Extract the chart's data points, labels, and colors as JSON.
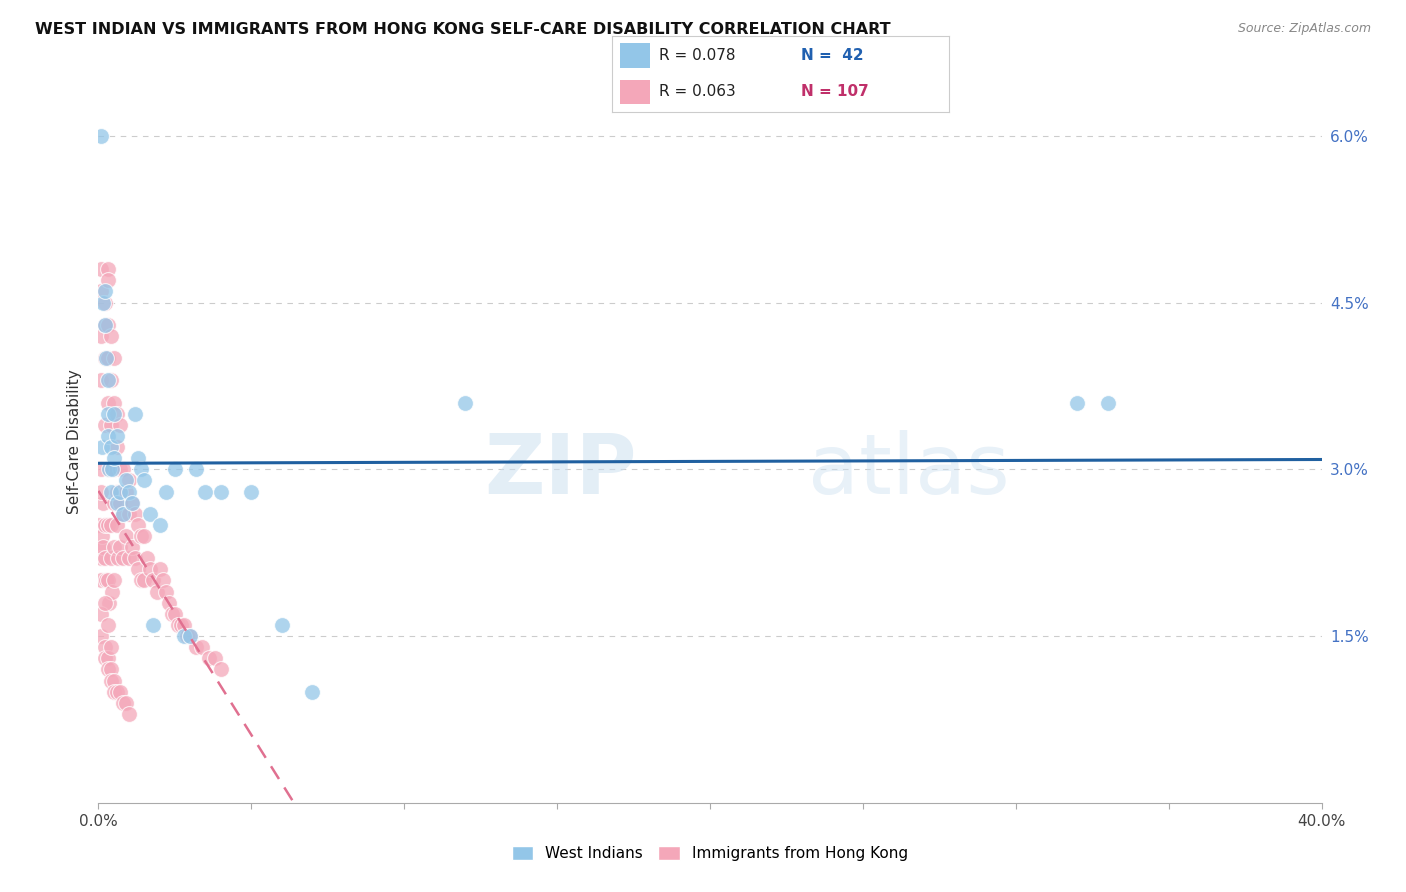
{
  "title": "WEST INDIAN VS IMMIGRANTS FROM HONG KONG SELF-CARE DISABILITY CORRELATION CHART",
  "source": "Source: ZipAtlas.com",
  "ylabel": "Self-Care Disability",
  "color_blue": "#93c6e8",
  "color_pink": "#f4a7b9",
  "color_blue_line": "#2060a0",
  "color_pink_line": "#e07090",
  "watermark_zip": "ZIP",
  "watermark_atlas": "atlas",
  "legend_r1": "R = 0.078",
  "legend_n1": "N =  42",
  "legend_r2": "R = 0.063",
  "legend_n2": "N = 107",
  "wi_x": [
    0.0008,
    0.0012,
    0.0015,
    0.002,
    0.002,
    0.0025,
    0.003,
    0.003,
    0.003,
    0.0035,
    0.004,
    0.004,
    0.0045,
    0.005,
    0.005,
    0.006,
    0.006,
    0.007,
    0.008,
    0.009,
    0.01,
    0.011,
    0.012,
    0.013,
    0.014,
    0.015,
    0.017,
    0.018,
    0.02,
    0.022,
    0.025,
    0.028,
    0.03,
    0.032,
    0.035,
    0.04,
    0.05,
    0.06,
    0.07,
    0.12,
    0.32,
    0.33
  ],
  "wi_y": [
    0.06,
    0.032,
    0.045,
    0.046,
    0.043,
    0.04,
    0.038,
    0.035,
    0.033,
    0.03,
    0.032,
    0.028,
    0.03,
    0.035,
    0.031,
    0.033,
    0.027,
    0.028,
    0.026,
    0.029,
    0.028,
    0.027,
    0.035,
    0.031,
    0.03,
    0.029,
    0.026,
    0.016,
    0.025,
    0.028,
    0.03,
    0.015,
    0.015,
    0.03,
    0.028,
    0.028,
    0.028,
    0.016,
    0.01,
    0.036,
    0.036,
    0.036
  ],
  "hk_x": [
    0.0003,
    0.0005,
    0.0007,
    0.0008,
    0.001,
    0.001,
    0.001,
    0.001,
    0.0012,
    0.0015,
    0.0015,
    0.002,
    0.002,
    0.002,
    0.002,
    0.002,
    0.0022,
    0.0025,
    0.003,
    0.003,
    0.003,
    0.003,
    0.003,
    0.003,
    0.003,
    0.0032,
    0.0035,
    0.004,
    0.004,
    0.004,
    0.004,
    0.004,
    0.0042,
    0.0045,
    0.005,
    0.005,
    0.005,
    0.005,
    0.005,
    0.0052,
    0.006,
    0.006,
    0.006,
    0.006,
    0.0065,
    0.007,
    0.007,
    0.007,
    0.007,
    0.008,
    0.008,
    0.008,
    0.009,
    0.009,
    0.01,
    0.01,
    0.01,
    0.011,
    0.011,
    0.012,
    0.012,
    0.013,
    0.013,
    0.014,
    0.014,
    0.015,
    0.015,
    0.016,
    0.017,
    0.018,
    0.019,
    0.02,
    0.021,
    0.022,
    0.023,
    0.024,
    0.025,
    0.026,
    0.027,
    0.028,
    0.029,
    0.03,
    0.032,
    0.034,
    0.036,
    0.038,
    0.04,
    0.001,
    0.001,
    0.002,
    0.002,
    0.003,
    0.003,
    0.004,
    0.004,
    0.005,
    0.005,
    0.006,
    0.007,
    0.008,
    0.009,
    0.01,
    0.001,
    0.001,
    0.002,
    0.003,
    0.004
  ],
  "hk_y": [
    0.025,
    0.023,
    0.022,
    0.02,
    0.048,
    0.046,
    0.042,
    0.038,
    0.024,
    0.027,
    0.023,
    0.045,
    0.043,
    0.04,
    0.034,
    0.025,
    0.022,
    0.02,
    0.048,
    0.047,
    0.043,
    0.04,
    0.036,
    0.03,
    0.025,
    0.02,
    0.018,
    0.042,
    0.038,
    0.034,
    0.03,
    0.025,
    0.022,
    0.019,
    0.04,
    0.036,
    0.03,
    0.027,
    0.023,
    0.02,
    0.035,
    0.032,
    0.028,
    0.025,
    0.022,
    0.034,
    0.03,
    0.027,
    0.023,
    0.03,
    0.026,
    0.022,
    0.028,
    0.024,
    0.029,
    0.026,
    0.022,
    0.027,
    0.023,
    0.026,
    0.022,
    0.025,
    0.021,
    0.024,
    0.02,
    0.024,
    0.02,
    0.022,
    0.021,
    0.02,
    0.019,
    0.021,
    0.02,
    0.019,
    0.018,
    0.017,
    0.017,
    0.016,
    0.016,
    0.016,
    0.015,
    0.015,
    0.014,
    0.014,
    0.013,
    0.013,
    0.012,
    0.017,
    0.015,
    0.014,
    0.013,
    0.013,
    0.012,
    0.012,
    0.011,
    0.011,
    0.01,
    0.01,
    0.01,
    0.009,
    0.009,
    0.008,
    0.03,
    0.028,
    0.018,
    0.016,
    0.014
  ],
  "xlim": [
    0.0,
    0.4
  ],
  "ylim": [
    0.0,
    0.065
  ],
  "yticks": [
    0.0,
    0.015,
    0.03,
    0.045,
    0.06
  ],
  "ytick_labels_right": [
    "",
    "1.5%",
    "3.0%",
    "4.5%",
    "6.0%"
  ]
}
